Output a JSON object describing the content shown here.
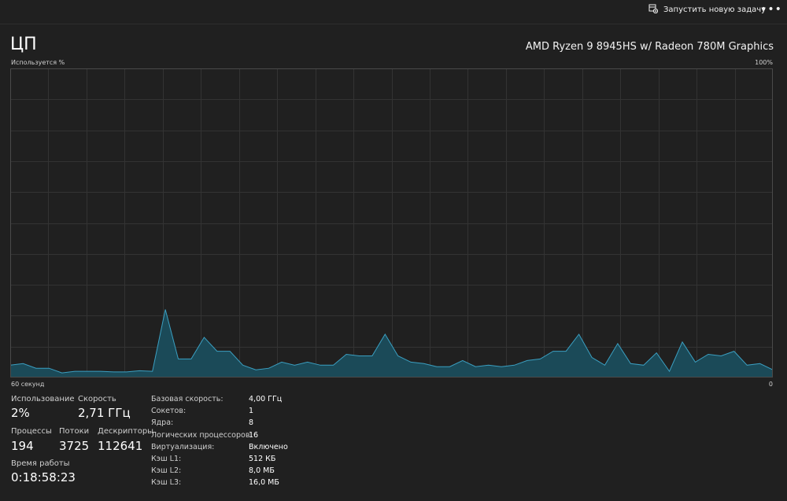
{
  "toolbar": {
    "new_task_label": "Запустить новую задачу",
    "new_task_icon": "run-task-icon",
    "more_icon": "more-options-icon"
  },
  "header": {
    "title": "ЦП",
    "cpu_name": "AMD Ryzen 9 8945HS w/ Radeon 780M Graphics"
  },
  "graph": {
    "y_label": "Используется %",
    "y_max_label": "100%",
    "x_left_label": "60 секунд",
    "x_right_label": "0",
    "line_color": "#3b9fc1",
    "fill_color": "#1b4a58",
    "grid_color": "#333333"
  },
  "chart_data": {
    "type": "area",
    "x_range_seconds": [
      60,
      0
    ],
    "ylim": [
      0,
      100
    ],
    "grid": true,
    "values": [
      4,
      4.5,
      3,
      3,
      1.5,
      2,
      2,
      2,
      1.8,
      1.8,
      2.2,
      2,
      22,
      6,
      6,
      13,
      8.5,
      8.5,
      4,
      2.5,
      3,
      5,
      4,
      5,
      4,
      4,
      7.5,
      7,
      7,
      14,
      7,
      5,
      4.5,
      3.5,
      3.5,
      5.5,
      3.5,
      4,
      3.5,
      4,
      5.5,
      6,
      8.5,
      8.5,
      14,
      6.5,
      4,
      11,
      4.5,
      4,
      8,
      2,
      11.5,
      5,
      7.5,
      7,
      8.5,
      4,
      4.5,
      2.5
    ]
  },
  "stats": {
    "usage_label": "Использование",
    "usage_value": "2%",
    "speed_label": "Скорость",
    "speed_value": "2,71 ГГц",
    "processes_label": "Процессы",
    "processes_value": "194",
    "threads_label": "Потоки",
    "threads_value": "3725",
    "handles_label": "Дескрипторы",
    "handles_value": "112641",
    "uptime_label": "Время работы",
    "uptime_value": "0:18:58:23"
  },
  "specs": [
    {
      "key": "Базовая скорость:",
      "value": "4,00 ГГц"
    },
    {
      "key": "Сокетов:",
      "value": "1"
    },
    {
      "key": "Ядра:",
      "value": "8"
    },
    {
      "key": "Логических процессоров:",
      "value": "16"
    },
    {
      "key": "Виртуализация:",
      "value": "Включено"
    },
    {
      "key": "Кэш L1:",
      "value": "512 КБ"
    },
    {
      "key": "Кэш L2:",
      "value": "8,0 МБ"
    },
    {
      "key": "Кэш L3:",
      "value": "16,0 МБ"
    }
  ]
}
